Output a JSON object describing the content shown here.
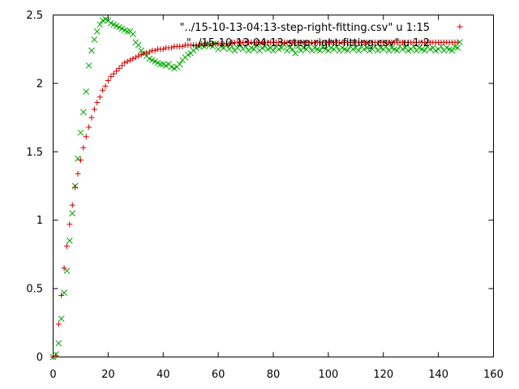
{
  "chart_data": {
    "type": "scatter",
    "xlim": [
      0,
      160
    ],
    "ylim": [
      0,
      2.5
    ],
    "xticks": [
      0,
      20,
      40,
      60,
      80,
      100,
      120,
      140,
      160
    ],
    "yticks": [
      0,
      0.5,
      1,
      1.5,
      2,
      2.5
    ],
    "xtick_labels": [
      "0",
      "20",
      "40",
      "60",
      "80",
      "100",
      "120",
      "140",
      "160"
    ],
    "ytick_labels": [
      "0",
      "0.5",
      "1",
      "1.5",
      "2",
      "2.5"
    ],
    "grid": false,
    "legend_position": "top-right",
    "series": [
      {
        "name": "\"../15-10-13-04:13-step-right-fitting.csv\" u 1:15",
        "marker": "plus",
        "color": "#cc0000",
        "x": [
          0,
          1,
          2,
          3,
          4,
          5,
          6,
          7,
          8,
          9,
          10,
          11,
          12,
          13,
          14,
          15,
          16,
          17,
          18,
          19,
          20,
          21,
          22,
          23,
          24,
          25,
          26,
          27,
          28,
          29,
          30,
          31,
          32,
          33,
          34,
          35,
          36,
          37,
          38,
          39,
          40,
          41,
          42,
          43,
          44,
          45,
          46,
          47,
          48,
          49,
          50,
          51,
          52,
          53,
          54,
          55,
          56,
          57,
          58,
          59,
          60,
          61,
          62,
          63,
          64,
          65,
          66,
          67,
          68,
          69,
          70,
          71,
          72,
          73,
          74,
          75,
          76,
          77,
          78,
          79,
          80,
          81,
          82,
          83,
          84,
          85,
          86,
          87,
          88,
          89,
          90,
          91,
          92,
          93,
          94,
          95,
          96,
          97,
          98,
          99,
          100,
          101,
          102,
          103,
          104,
          105,
          106,
          107,
          108,
          109,
          110,
          111,
          112,
          113,
          114,
          115,
          116,
          117,
          118,
          119,
          120,
          121,
          122,
          123,
          124,
          125,
          126,
          127,
          128,
          129,
          130,
          131,
          132,
          133,
          134,
          135,
          136,
          137,
          138,
          139,
          140,
          141,
          142,
          143,
          144,
          145,
          146,
          147
        ],
        "y": [
          0,
          0.01,
          0.24,
          0.45,
          0.65,
          0.81,
          0.97,
          1.11,
          1.24,
          1.34,
          1.44,
          1.53,
          1.61,
          1.68,
          1.75,
          1.81,
          1.86,
          1.9,
          1.95,
          1.98,
          2.02,
          2.05,
          2.07,
          2.09,
          2.11,
          2.13,
          2.15,
          2.16,
          2.17,
          2.18,
          2.19,
          2.2,
          2.21,
          2.22,
          2.22,
          2.23,
          2.24,
          2.24,
          2.25,
          2.25,
          2.25,
          2.26,
          2.26,
          2.26,
          2.27,
          2.27,
          2.27,
          2.27,
          2.28,
          2.28,
          2.28,
          2.28,
          2.28,
          2.28,
          2.29,
          2.29,
          2.29,
          2.29,
          2.29,
          2.29,
          2.29,
          2.29,
          2.29,
          2.29,
          2.29,
          2.3,
          2.3,
          2.3,
          2.3,
          2.3,
          2.3,
          2.3,
          2.3,
          2.3,
          2.3,
          2.3,
          2.3,
          2.3,
          2.3,
          2.3,
          2.3,
          2.3,
          2.3,
          2.3,
          2.3,
          2.3,
          2.3,
          2.3,
          2.3,
          2.3,
          2.3,
          2.3,
          2.3,
          2.3,
          2.3,
          2.3,
          2.3,
          2.3,
          2.3,
          2.3,
          2.3,
          2.3,
          2.3,
          2.3,
          2.3,
          2.3,
          2.3,
          2.3,
          2.3,
          2.3,
          2.3,
          2.3,
          2.3,
          2.3,
          2.3,
          2.3,
          2.3,
          2.3,
          2.3,
          2.3,
          2.3,
          2.3,
          2.3,
          2.3,
          2.3,
          2.3,
          2.3,
          2.3,
          2.3,
          2.3,
          2.3,
          2.3,
          2.3,
          2.3,
          2.3,
          2.3,
          2.3,
          2.3,
          2.3,
          2.3,
          2.3,
          2.3,
          2.3,
          2.3,
          2.3,
          2.3,
          2.3,
          2.3
        ]
      },
      {
        "name": "\"../15-10-13-04:13-step-right-fitting.csv\" u 1:2",
        "marker": "cross",
        "color": "#00aa00",
        "x": [
          0,
          1,
          2,
          3,
          4,
          5,
          6,
          7,
          8,
          9,
          10,
          11,
          12,
          13,
          14,
          15,
          16,
          17,
          18,
          19,
          20,
          21,
          22,
          23,
          24,
          25,
          26,
          27,
          28,
          29,
          30,
          31,
          32,
          33,
          34,
          35,
          36,
          37,
          38,
          39,
          40,
          41,
          42,
          43,
          44,
          45,
          46,
          47,
          48,
          49,
          50,
          51,
          52,
          53,
          54,
          55,
          56,
          57,
          58,
          59,
          60,
          61,
          62,
          63,
          64,
          65,
          66,
          67,
          68,
          69,
          70,
          71,
          72,
          73,
          74,
          75,
          76,
          77,
          78,
          79,
          80,
          81,
          82,
          83,
          84,
          85,
          86,
          87,
          88,
          89,
          90,
          91,
          92,
          93,
          94,
          95,
          96,
          97,
          98,
          99,
          100,
          101,
          102,
          103,
          104,
          105,
          106,
          107,
          108,
          109,
          110,
          111,
          112,
          113,
          114,
          115,
          116,
          117,
          118,
          119,
          120,
          121,
          122,
          123,
          124,
          125,
          126,
          127,
          128,
          129,
          130,
          131,
          132,
          133,
          134,
          135,
          136,
          137,
          138,
          139,
          140,
          141,
          142,
          143,
          144,
          145,
          146,
          147
        ],
        "y": [
          0,
          0.02,
          0.1,
          0.28,
          0.47,
          0.63,
          0.85,
          1.05,
          1.25,
          1.45,
          1.64,
          1.79,
          1.94,
          2.13,
          2.24,
          2.32,
          2.38,
          2.43,
          2.46,
          2.47,
          2.46,
          2.44,
          2.43,
          2.42,
          2.41,
          2.4,
          2.39,
          2.38,
          2.38,
          2.36,
          2.3,
          2.28,
          2.24,
          2.22,
          2.2,
          2.18,
          2.17,
          2.16,
          2.15,
          2.14,
          2.14,
          2.13,
          2.14,
          2.12,
          2.11,
          2.12,
          2.14,
          2.17,
          2.19,
          2.21,
          2.22,
          2.24,
          2.26,
          2.27,
          2.28,
          2.27,
          2.29,
          2.28,
          2.27,
          2.29,
          2.25,
          2.27,
          2.26,
          2.28,
          2.25,
          2.27,
          2.24,
          2.26,
          2.28,
          2.25,
          2.27,
          2.24,
          2.26,
          2.25,
          2.28,
          2.24,
          2.26,
          2.27,
          2.25,
          2.26,
          2.24,
          2.27,
          2.25,
          2.26,
          2.28,
          2.24,
          2.26,
          2.25,
          2.22,
          2.27,
          2.24,
          2.26,
          2.25,
          2.27,
          2.24,
          2.26,
          2.25,
          2.24,
          2.27,
          2.25,
          2.24,
          2.26,
          2.25,
          2.27,
          2.24,
          2.26,
          2.25,
          2.24,
          2.27,
          2.25,
          2.26,
          2.24,
          2.27,
          2.25,
          2.26,
          2.24,
          2.25,
          2.27,
          2.24,
          2.26,
          2.25,
          2.27,
          2.24,
          2.26,
          2.25,
          2.24,
          2.27,
          2.25,
          2.26,
          2.24,
          2.25,
          2.27,
          2.24,
          2.26,
          2.25,
          2.24,
          2.27,
          2.25,
          2.26,
          2.24,
          2.25,
          2.27,
          2.24,
          2.26,
          2.25,
          2.24,
          2.27,
          2.26
        ]
      }
    ]
  }
}
